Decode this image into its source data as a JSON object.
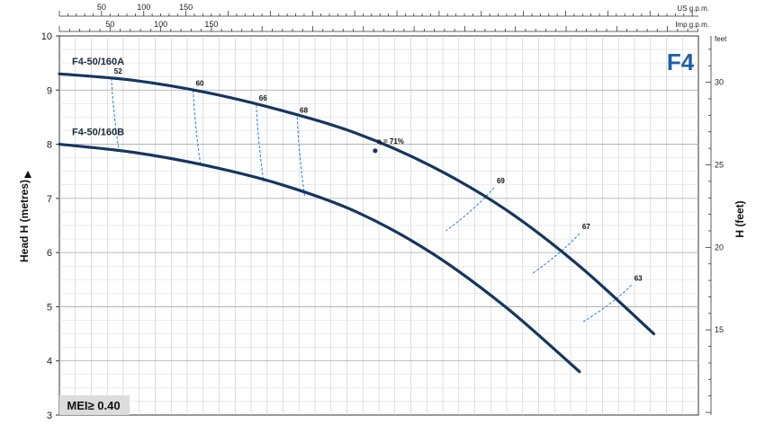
{
  "model": "F4",
  "mei": "MEI≥ 0.40",
  "chart_data": {
    "type": "line",
    "ylabel": "Head H (metres)",
    "ylabel_right": "H (feet)",
    "ylim": [
      3,
      10
    ],
    "yticks": [
      3,
      4,
      5,
      6,
      7,
      8,
      9,
      10
    ],
    "xlim": [
      0,
      172
    ],
    "top_scale_us": {
      "unit": "US g.p.m.",
      "ticks": [
        50,
        100,
        150
      ],
      "per_m3h": 4.403
    },
    "top_scale_imp": {
      "unit": "Imp g.p.m.",
      "ticks": [
        50,
        100,
        150
      ],
      "per_m3h": 3.666
    },
    "right_scale": {
      "unit": "feet",
      "ticks": [
        15,
        20,
        25,
        30
      ]
    },
    "series": [
      {
        "name": "F4-50/160A",
        "x": [
          0,
          20,
          40,
          60,
          80,
          100,
          120,
          140,
          160
        ],
        "y": [
          9.3,
          9.18,
          8.95,
          8.62,
          8.2,
          7.6,
          6.8,
          5.75,
          4.5
        ]
      },
      {
        "name": "F4-50/160B",
        "x": [
          0,
          20,
          40,
          60,
          80,
          100,
          120,
          140
        ],
        "y": [
          8.0,
          7.85,
          7.6,
          7.25,
          6.75,
          6.0,
          5.0,
          3.8
        ]
      }
    ],
    "efficiency": [
      {
        "label": "52",
        "x": 14,
        "ya": 9.22,
        "yb": 7.9
      },
      {
        "label": "60",
        "x": 36,
        "ya": 9.0,
        "yb": 7.62
      },
      {
        "label": "66",
        "x": 53,
        "ya": 8.72,
        "yb": 7.3
      },
      {
        "label": "68",
        "x": 64,
        "ya": 8.5,
        "yb": 7.05
      },
      {
        "label": "69",
        "x": 117,
        "ya": 7.2,
        "yb": 6.4
      },
      {
        "label": "67",
        "x": 140,
        "ya": 6.35,
        "yb": 5.6
      },
      {
        "label": "63",
        "x": 154,
        "ya": 5.4,
        "yb": 4.72
      }
    ],
    "best_efficiency": {
      "label": "η = 71%",
      "x": 85,
      "y": 7.88
    }
  }
}
